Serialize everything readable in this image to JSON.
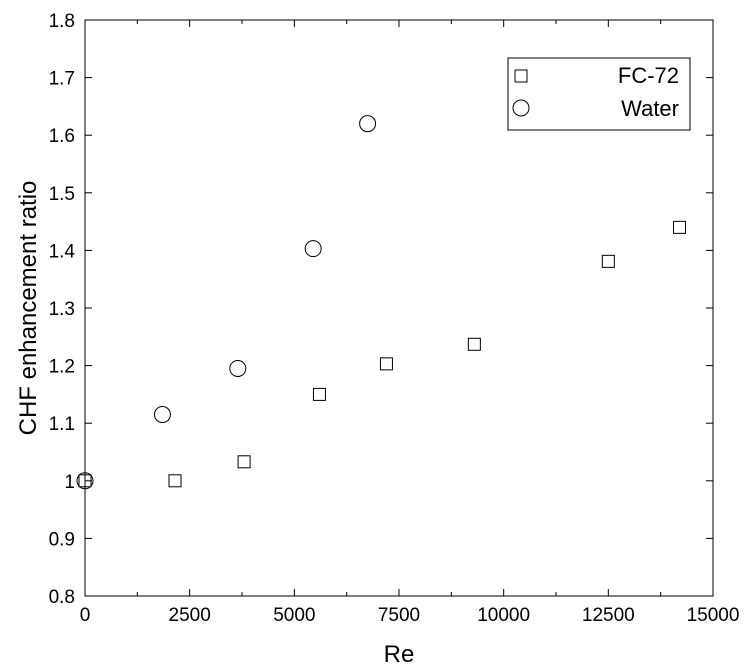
{
  "chart_data": {
    "type": "scatter",
    "title": "",
    "xlabel": "Re",
    "ylabel": "CHF enhancement ratio",
    "xlim": [
      0,
      15000
    ],
    "ylim": [
      0.8,
      1.8
    ],
    "x_ticks": [
      0,
      2500,
      5000,
      7500,
      10000,
      12500,
      15000
    ],
    "x_tick_labels": [
      "0",
      "2500",
      "5000",
      "7500",
      "10000",
      "12500",
      "15000"
    ],
    "y_ticks": [
      0.8,
      0.9,
      1.0,
      1.1,
      1.2,
      1.3,
      1.4,
      1.5,
      1.6,
      1.7,
      1.8
    ],
    "y_tick_labels": [
      "0.8",
      "0.9",
      "1",
      "1.1",
      "1.2",
      "1.3",
      "1.4",
      "1.5",
      "1.6",
      "1.7",
      "1.8"
    ],
    "grid": false,
    "legend_position": "top-right",
    "series": [
      {
        "name": "FC-72",
        "marker": "square",
        "x": [
          0,
          2150,
          3800,
          5600,
          7200,
          9300,
          12500,
          14200
        ],
        "y": [
          1.0,
          1.0,
          1.033,
          1.15,
          1.203,
          1.237,
          1.381,
          1.44
        ]
      },
      {
        "name": "Water",
        "marker": "circle",
        "x": [
          0,
          1850,
          3650,
          5450,
          6750
        ],
        "y": [
          1.0,
          1.115,
          1.195,
          1.403,
          1.62
        ]
      }
    ]
  }
}
